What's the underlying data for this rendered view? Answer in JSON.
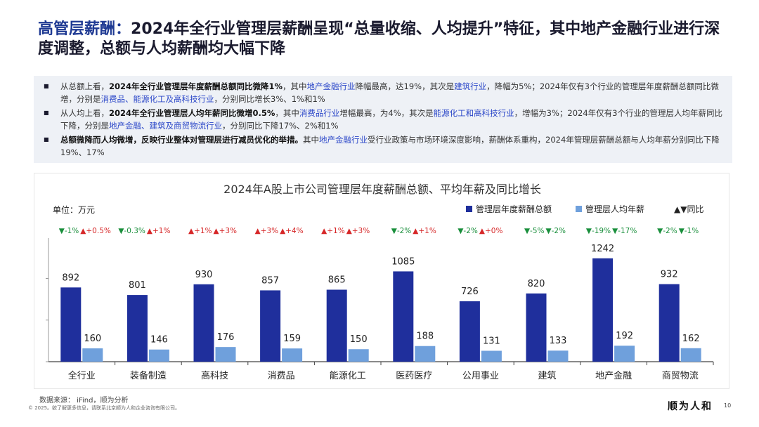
{
  "header": {
    "title_highlight": "高管层薪酬：",
    "title_rest": "2024年全行业管理层薪酬呈现“总量收缩、人均提升”特征，其中地产金融行业进行深度调整，总额与人均薪酬均大幅下降"
  },
  "bullets": [
    {
      "lead": "从总额上看，",
      "strong": "2024年全行业管理层年度薪酬总额同比微降1%",
      "p1": "，其中",
      "lk1": "地产金融行业",
      "p2": "降幅最高，达19%，其次是",
      "lk2": "建筑行业",
      "p3": "，降幅为5%；2024年仅有3个行业的管理层年度薪酬总额同比微增，分别是",
      "lk3": "消费品、能源化工及高科技行业",
      "p4": "，分别同比增长3%、1%和1%"
    },
    {
      "lead": "从人均上看，",
      "strong": "2024年全行业管理层人均年薪同比微增0.5%",
      "p1": "，其中",
      "lk1": "消费品行业",
      "p2": "增幅最高，为4%，其次是",
      "lk2": "能源化工和高科技行业",
      "p3": "，增幅为3%；2024年仅有3个行业的管理层人均年薪同比下降，分别是",
      "lk3": "地产金融、建筑及商贸物流行业",
      "p4": "，分别同比下降17%、2%和1%"
    },
    {
      "lead": "",
      "strong": "总额微降而人均微增，反映行业整体对管理层进行减员优化的举措。",
      "p1": "其中",
      "lk1": "地产金融行业",
      "p2": "受行业政策与市场环境深度影响，薪酬体系重构，2024年管理层薪酬总额与人均年薪分别同比下降19%、17%",
      "lk2": "",
      "p3": "",
      "lk3": "",
      "p4": ""
    }
  ],
  "chart_data": {
    "type": "bar",
    "title": "2024年A股上市公司管理层年度薪酬总额、平均年薪及同比增长",
    "unit_label": "单位：万元",
    "categories": [
      "全行业",
      "装备制造",
      "高科技",
      "消费品",
      "能源化工",
      "医药医疗",
      "公用事业",
      "建筑",
      "地产金融",
      "商贸物流"
    ],
    "series": [
      {
        "name": "管理层年度薪酬总额",
        "color": "#1f2f9c",
        "values": [
          892,
          801,
          930,
          857,
          865,
          1085,
          726,
          820,
          1242,
          932
        ]
      },
      {
        "name": "管理层人均年薪",
        "color": "#6fa0dc",
        "values": [
          160,
          146,
          176,
          159,
          150,
          188,
          131,
          133,
          192,
          162
        ]
      }
    ],
    "yoy_legend": "▲▼同比",
    "yoy": [
      [
        "▼-1%",
        "▲+0.5%"
      ],
      [
        "▼-0.3%",
        "▲+1%"
      ],
      [
        "▲+1%",
        "▲+3%"
      ],
      [
        "▲+3%",
        "▲+4%"
      ],
      [
        "▲+1%",
        "▲+3%"
      ],
      [
        "▼-2%",
        "▲+1%"
      ],
      [
        "▼-2%",
        "▲+0%"
      ],
      [
        "▼-5%",
        "▼-2%"
      ],
      [
        "▼-19%",
        "▼-17%"
      ],
      [
        "▼-2%",
        "▼-1%"
      ]
    ],
    "ylim": [
      0,
      1500
    ],
    "up_color": "#d62728",
    "down_color": "#1a8f3c",
    "legend_position": "top-right"
  },
  "footer": {
    "source": "数据来源： iFind，顺为分析",
    "copyright": "© 2025。欲了解更多信息，请联系北京顺为人和企业咨询有限公司。",
    "logo": "顺为人和",
    "page": "10"
  }
}
